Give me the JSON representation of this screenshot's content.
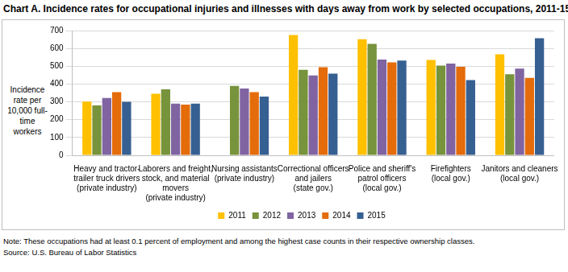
{
  "chart_data": {
    "type": "bar",
    "title": "Chart A. Incidence rates for occupational injuries and illnesses with days away from work by selected occupations, 2011-15",
    "y_label": "Incidence rate per 10,000 full-time workers",
    "categories": [
      "Heavy and tractor-trailer truck drivers (private industry)",
      "Laborers and freight, stock, and material movers (private industry)",
      "Nursing assistants (private industry)",
      "Correctional officers and jailers (state gov.)",
      "Police and sheriff's patrol officers (local gov.)",
      "Firefighters (local gov.)",
      "Janitors and cleaners (local gov.)"
    ],
    "series": [
      {
        "name": "2011",
        "color": "#ffc000",
        "values": [
          302,
          345,
          null,
          675,
          652,
          535,
          567
        ]
      },
      {
        "name": "2012",
        "color": "#77933c",
        "values": [
          280,
          370,
          390,
          480,
          625,
          503,
          455
        ]
      },
      {
        "name": "2013",
        "color": "#8064a2",
        "values": [
          322,
          290,
          375,
          448,
          537,
          515,
          487
        ]
      },
      {
        "name": "2014",
        "color": "#e46c0a",
        "values": [
          355,
          285,
          355,
          495,
          522,
          497,
          435
        ]
      },
      {
        "name": "2015",
        "color": "#376092",
        "values": [
          300,
          290,
          330,
          458,
          532,
          422,
          657
        ]
      }
    ],
    "ylim": [
      0,
      700
    ],
    "yticks": [
      0,
      100,
      200,
      300,
      400,
      500,
      600,
      700
    ],
    "grid": true,
    "legend": "bottom",
    "notes": [
      "Note: These occupations had at least 0.1 percent of employment and among the highest case counts in their respective ownership classes.",
      "Source: U.S. Bureau of Labor Statistics"
    ]
  }
}
